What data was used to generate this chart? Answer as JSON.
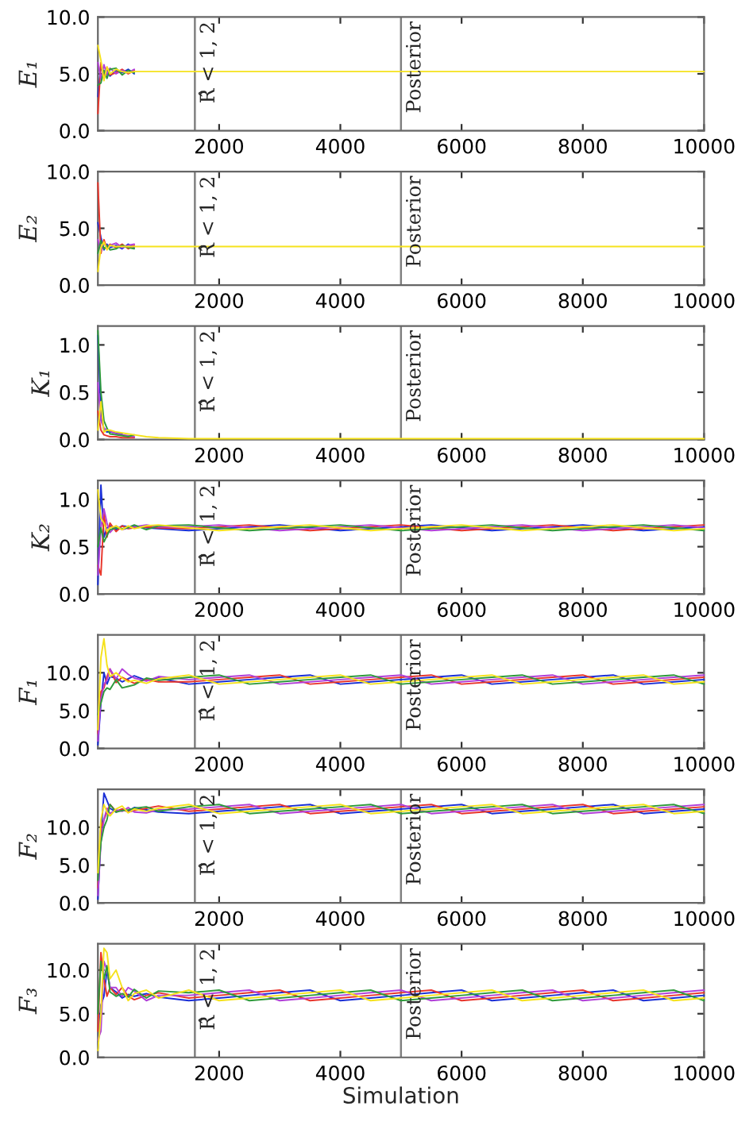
{
  "chart_data": [
    {
      "type": "line",
      "ylabel": "E₁",
      "xlim": [
        0,
        10000
      ],
      "xticks": [
        2000,
        4000,
        6000,
        8000,
        10000
      ],
      "ylim": [
        0,
        10
      ],
      "yticks": [
        {
          "value": 0,
          "label": "0.0"
        },
        {
          "value": 5,
          "label": "5.0"
        },
        {
          "value": 10,
          "label": "10.0"
        }
      ],
      "ref_lines": [
        {
          "axis": "x",
          "value": 1600,
          "label": "R̂ < 1, 2",
          "color": "#808080"
        },
        {
          "axis": "x",
          "value": 5000,
          "label": "Posterior",
          "color": "#808080"
        }
      ],
      "x": [
        0,
        50,
        100,
        150,
        200,
        300,
        400,
        500,
        600,
        800,
        1000,
        1500,
        2000,
        2500,
        3000,
        3500,
        4000,
        4500,
        5000,
        5500,
        6000,
        6500,
        7000,
        7500,
        8000,
        8500,
        9000,
        9500,
        10000
      ],
      "series": [
        {
          "color": "#1a2fd6",
          "values": [
            3.0,
            5.8,
            4.6,
            5.5,
            4.8,
            5.3,
            5.1,
            5.4,
            5.0,
            null,
            null,
            null,
            null,
            null,
            null,
            null,
            null,
            null,
            null,
            null,
            null,
            null,
            null,
            null,
            null,
            null,
            null,
            null,
            null
          ]
        },
        {
          "color": "#e8352b",
          "values": [
            1.5,
            6.0,
            4.7,
            5.6,
            4.9,
            5.1,
            5.4,
            5.0,
            5.3,
            null,
            null,
            null,
            null,
            null,
            null,
            null,
            null,
            null,
            null,
            null,
            null,
            null,
            null,
            null,
            null,
            null,
            null,
            null,
            null
          ]
        },
        {
          "color": "#b13fd8",
          "values": [
            6.0,
            4.5,
            5.8,
            4.9,
            5.5,
            5.0,
            5.3,
            5.1,
            5.4,
            null,
            null,
            null,
            null,
            null,
            null,
            null,
            null,
            null,
            null,
            null,
            null,
            null,
            null,
            null,
            null,
            null,
            null,
            null,
            null
          ]
        },
        {
          "color": "#2e9a3c",
          "values": [
            4.0,
            4.2,
            5.3,
            4.6,
            5.4,
            5.5,
            4.9,
            5.3,
            5.1,
            null,
            null,
            null,
            null,
            null,
            null,
            null,
            null,
            null,
            null,
            null,
            null,
            null,
            null,
            null,
            null,
            null,
            null,
            null,
            null
          ]
        },
        {
          "color": "#f5e21c",
          "values": [
            7.5,
            6.2,
            4.4,
            5.6,
            5.0,
            5.4,
            5.2,
            5.1,
            5.2,
            5.2,
            5.2,
            5.2,
            5.2,
            5.2,
            5.2,
            5.2,
            5.2,
            5.2,
            5.2,
            5.2,
            5.2,
            5.2,
            5.2,
            5.2,
            5.2,
            5.2,
            5.2,
            5.2,
            5.2
          ]
        }
      ]
    },
    {
      "type": "line",
      "ylabel": "E₂",
      "xlim": [
        0,
        10000
      ],
      "xticks": [
        2000,
        4000,
        6000,
        8000,
        10000
      ],
      "ylim": [
        0,
        10
      ],
      "yticks": [
        {
          "value": 0,
          "label": "0.0"
        },
        {
          "value": 5,
          "label": "5.0"
        },
        {
          "value": 10,
          "label": "10.0"
        }
      ],
      "ref_lines": [
        {
          "axis": "x",
          "value": 1600,
          "label": "R̂ < 1, 2",
          "color": "#808080"
        },
        {
          "axis": "x",
          "value": 5000,
          "label": "Posterior",
          "color": "#808080"
        }
      ],
      "x": [
        0,
        50,
        100,
        150,
        200,
        300,
        400,
        500,
        600,
        800,
        1000,
        1500,
        2000,
        2500,
        3000,
        3500,
        4000,
        4500,
        5000,
        5500,
        6000,
        6500,
        7000,
        7500,
        8000,
        8500,
        9000,
        9500,
        10000
      ],
      "series": [
        {
          "color": "#1a2fd6",
          "values": [
            5.5,
            4.2,
            3.1,
            3.6,
            3.3,
            3.5,
            3.2,
            3.6,
            3.3,
            null,
            null,
            null,
            null,
            null,
            null,
            null,
            null,
            null,
            null,
            null,
            null,
            null,
            null,
            null,
            null,
            null,
            null,
            null,
            null
          ]
        },
        {
          "color": "#e8352b",
          "values": [
            9.0,
            2.8,
            4.0,
            3.2,
            3.6,
            3.3,
            3.6,
            3.2,
            3.5,
            null,
            null,
            null,
            null,
            null,
            null,
            null,
            null,
            null,
            null,
            null,
            null,
            null,
            null,
            null,
            null,
            null,
            null,
            null,
            null
          ]
        },
        {
          "color": "#b13fd8",
          "values": [
            4.0,
            3.0,
            3.7,
            3.3,
            3.5,
            3.7,
            3.3,
            3.5,
            3.6,
            null,
            null,
            null,
            null,
            null,
            null,
            null,
            null,
            null,
            null,
            null,
            null,
            null,
            null,
            null,
            null,
            null,
            null,
            null,
            null
          ]
        },
        {
          "color": "#2e9a3c",
          "values": [
            2.8,
            3.9,
            3.2,
            3.5,
            3.1,
            3.2,
            3.5,
            3.3,
            3.2,
            null,
            null,
            null,
            null,
            null,
            null,
            null,
            null,
            null,
            null,
            null,
            null,
            null,
            null,
            null,
            null,
            null,
            null,
            null,
            null
          ]
        },
        {
          "color": "#f5e21c",
          "values": [
            1.2,
            3.3,
            3.8,
            3.1,
            3.5,
            3.4,
            3.4,
            3.4,
            3.4,
            3.4,
            3.4,
            3.4,
            3.4,
            3.4,
            3.4,
            3.4,
            3.4,
            3.4,
            3.4,
            3.4,
            3.4,
            3.4,
            3.4,
            3.4,
            3.4,
            3.4,
            3.4,
            3.4,
            3.4
          ]
        }
      ]
    },
    {
      "type": "line",
      "ylabel": "K₁",
      "xlim": [
        0,
        10000
      ],
      "xticks": [
        2000,
        4000,
        6000,
        8000,
        10000
      ],
      "ylim": [
        0,
        1.2
      ],
      "yticks": [
        {
          "value": 0,
          "label": "0.0"
        },
        {
          "value": 0.5,
          "label": "0.5"
        },
        {
          "value": 1,
          "label": "1.0"
        }
      ],
      "ref_lines": [
        {
          "axis": "x",
          "value": 1600,
          "label": "R̂ < 1, 2",
          "color": "#808080"
        },
        {
          "axis": "x",
          "value": 5000,
          "label": "Posterior",
          "color": "#808080"
        }
      ],
      "x": [
        0,
        50,
        100,
        150,
        200,
        300,
        400,
        500,
        600,
        800,
        1000,
        1500,
        2000,
        2500,
        3000,
        3500,
        4000,
        4500,
        5000,
        5500,
        6000,
        6500,
        7000,
        7500,
        8000,
        8500,
        9000,
        9500,
        10000
      ],
      "series": [
        {
          "color": "#1a2fd6",
          "values": [
            1.1,
            0.3,
            0.1,
            0.08,
            0.08,
            0.07,
            0.06,
            null,
            null,
            null,
            null,
            null,
            null,
            null,
            null,
            null,
            null,
            null,
            null,
            null,
            null,
            null,
            null,
            null,
            null,
            null,
            null,
            null,
            null
          ]
        },
        {
          "color": "#e8352b",
          "values": [
            0.3,
            0.1,
            0.05,
            0.04,
            0.03,
            0.03,
            0.02,
            0.02,
            0.02,
            null,
            null,
            null,
            null,
            null,
            null,
            null,
            null,
            null,
            null,
            null,
            null,
            null,
            null,
            null,
            null,
            null,
            null,
            null,
            null
          ]
        },
        {
          "color": "#b13fd8",
          "values": [
            0.6,
            0.2,
            0.12,
            0.1,
            0.09,
            0.06,
            0.05,
            0.04,
            0.03,
            null,
            null,
            null,
            null,
            null,
            null,
            null,
            null,
            null,
            null,
            null,
            null,
            null,
            null,
            null,
            null,
            null,
            null,
            null,
            null
          ]
        },
        {
          "color": "#2e9a3c",
          "values": [
            1.15,
            0.5,
            0.2,
            0.12,
            0.06,
            0.05,
            0.04,
            0.03,
            0.05,
            null,
            null,
            null,
            null,
            null,
            null,
            null,
            null,
            null,
            null,
            null,
            null,
            null,
            null,
            null,
            null,
            null,
            null,
            null,
            null
          ]
        },
        {
          "color": "#f5e21c",
          "values": [
            0.1,
            0.4,
            0.08,
            0.1,
            0.1,
            0.08,
            0.07,
            0.06,
            0.05,
            0.03,
            0.02,
            0.01,
            0.01,
            0.01,
            0.01,
            0.01,
            0.01,
            0.01,
            0.01,
            0.01,
            0.01,
            0.01,
            0.01,
            0.01,
            0.01,
            0.01,
            0.01,
            0.01,
            0.01
          ]
        }
      ]
    },
    {
      "type": "line",
      "ylabel": "K₂",
      "xlim": [
        0,
        10000
      ],
      "xticks": [
        2000,
        4000,
        6000,
        8000,
        10000
      ],
      "ylim": [
        0,
        1.2
      ],
      "yticks": [
        {
          "value": 0,
          "label": "0.0"
        },
        {
          "value": 0.5,
          "label": "0.5"
        },
        {
          "value": 1,
          "label": "1.0"
        }
      ],
      "ref_lines": [
        {
          "axis": "x",
          "value": 1600,
          "label": "R̂ < 1, 2",
          "color": "#808080"
        },
        {
          "axis": "x",
          "value": 5000,
          "label": "Posterior",
          "color": "#808080"
        }
      ],
      "x": [
        0,
        50,
        100,
        150,
        200,
        300,
        400,
        500,
        600,
        800,
        1000,
        1500,
        2000,
        2500,
        3000,
        3500,
        4000,
        4500,
        5000,
        5500,
        6000,
        6500,
        7000,
        7500,
        8000,
        8500,
        9000,
        9500,
        10000
      ],
      "series": [
        {
          "color": "#1a2fd6",
          "values": [
            0.1,
            1.15,
            0.6,
            0.7,
            0.72,
            0.68,
            0.72,
            0.71,
            0.72,
            0.7,
            0.69,
            0.67,
            0.69,
            0.71,
            0.73,
            0.7,
            0.67,
            0.69,
            0.71,
            0.73,
            0.7,
            0.67,
            0.69,
            0.71,
            0.73,
            0.7,
            0.67,
            0.69,
            0.71
          ]
        },
        {
          "color": "#e8352b",
          "values": [
            0.3,
            0.2,
            0.85,
            0.6,
            0.75,
            0.66,
            0.72,
            0.69,
            0.7,
            0.71,
            0.7,
            0.69,
            0.71,
            0.73,
            0.7,
            0.67,
            0.69,
            0.71,
            0.73,
            0.7,
            0.67,
            0.69,
            0.71,
            0.73,
            0.7,
            0.67,
            0.69,
            0.71,
            0.73
          ]
        },
        {
          "color": "#b13fd8",
          "values": [
            0.2,
            0.7,
            0.9,
            0.75,
            0.65,
            0.72,
            0.68,
            0.7,
            0.71,
            0.73,
            0.71,
            0.71,
            0.73,
            0.7,
            0.67,
            0.69,
            0.71,
            0.73,
            0.7,
            0.67,
            0.69,
            0.71,
            0.73,
            0.7,
            0.67,
            0.69,
            0.71,
            0.73,
            0.7
          ]
        },
        {
          "color": "#2e9a3c",
          "values": [
            0.5,
            0.7,
            0.55,
            0.62,
            0.68,
            0.7,
            0.69,
            0.7,
            0.73,
            0.68,
            0.72,
            0.73,
            0.7,
            0.67,
            0.69,
            0.71,
            0.73,
            0.7,
            0.67,
            0.69,
            0.71,
            0.73,
            0.7,
            0.67,
            0.69,
            0.71,
            0.73,
            0.7,
            0.67
          ]
        },
        {
          "color": "#f5e21c",
          "values": [
            1.1,
            0.8,
            0.75,
            0.66,
            0.7,
            0.72,
            0.68,
            0.72,
            0.69,
            0.72,
            0.73,
            0.7,
            0.67,
            0.69,
            0.71,
            0.73,
            0.7,
            0.67,
            0.69,
            0.71,
            0.73,
            0.7,
            0.67,
            0.69,
            0.71,
            0.73,
            0.7,
            0.67,
            0.69
          ]
        }
      ]
    },
    {
      "type": "line",
      "ylabel": "F₁",
      "xlim": [
        0,
        10000
      ],
      "xticks": [
        2000,
        4000,
        6000,
        8000,
        10000
      ],
      "ylim": [
        0,
        15
      ],
      "yticks": [
        {
          "value": 0,
          "label": "0.0"
        },
        {
          "value": 5,
          "label": "5.0"
        },
        {
          "value": 10,
          "label": "10.0"
        }
      ],
      "ref_lines": [
        {
          "axis": "x",
          "value": 1600,
          "label": "R̂ < 1, 2",
          "color": "#808080"
        },
        {
          "axis": "x",
          "value": 5000,
          "label": "Posterior",
          "color": "#808080"
        }
      ],
      "x": [
        0,
        50,
        100,
        150,
        200,
        300,
        400,
        500,
        600,
        800,
        1000,
        1500,
        2000,
        2500,
        3000,
        3500,
        4000,
        4500,
        5000,
        5500,
        6000,
        6500,
        7000,
        7500,
        8000,
        8500,
        9000,
        9500,
        10000
      ],
      "series": [
        {
          "color": "#1a2fd6",
          "values": [
            0.5,
            6.0,
            10.0,
            8.5,
            9.5,
            9.3,
            8.8,
            9.2,
            9.6,
            9.0,
            9.3,
            8.5,
            8.8,
            9.1,
            9.4,
            9.7,
            8.5,
            8.8,
            9.1,
            9.4,
            9.7,
            8.5,
            8.8,
            9.1,
            9.4,
            9.7,
            8.5,
            8.8,
            9.1
          ]
        },
        {
          "color": "#e8352b",
          "values": [
            2.0,
            7.5,
            8.0,
            9.5,
            10.5,
            8.7,
            9.4,
            9.0,
            8.6,
            9.1,
            8.8,
            8.8,
            9.1,
            9.4,
            9.7,
            8.5,
            8.8,
            9.1,
            9.4,
            9.7,
            8.5,
            8.8,
            9.1,
            9.4,
            9.7,
            8.5,
            8.8,
            9.1,
            9.4
          ]
        },
        {
          "color": "#b13fd8",
          "values": [
            1.0,
            6.5,
            8.5,
            9.0,
            10.5,
            9.2,
            10.5,
            9.8,
            9.3,
            8.9,
            9.5,
            9.1,
            9.4,
            9.7,
            8.5,
            8.8,
            9.1,
            9.4,
            9.7,
            8.5,
            8.8,
            9.1,
            9.4,
            9.7,
            8.5,
            8.8,
            9.1,
            9.4,
            9.7
          ]
        },
        {
          "color": "#2e9a3c",
          "values": [
            4.5,
            6.0,
            7.5,
            8.0,
            7.8,
            9.1,
            8.0,
            8.2,
            8.4,
            9.3,
            9.0,
            9.4,
            9.7,
            8.5,
            8.8,
            9.1,
            9.4,
            9.7,
            8.5,
            8.8,
            9.1,
            9.4,
            9.7,
            8.5,
            8.8,
            9.1,
            9.4,
            9.7,
            8.5
          ]
        },
        {
          "color": "#f5e21c",
          "values": [
            2.5,
            12.0,
            14.5,
            11.0,
            9.5,
            10.0,
            9.3,
            8.8,
            9.0,
            8.6,
            9.2,
            9.7,
            8.5,
            8.8,
            9.1,
            9.4,
            9.7,
            8.5,
            8.8,
            9.1,
            9.4,
            9.7,
            8.5,
            8.8,
            9.1,
            9.4,
            9.7,
            8.5,
            8.8
          ]
        }
      ]
    },
    {
      "type": "line",
      "ylabel": "F₂",
      "xlim": [
        0,
        10000
      ],
      "xticks": [
        2000,
        4000,
        6000,
        8000,
        10000
      ],
      "ylim": [
        0,
        15
      ],
      "yticks": [
        {
          "value": 0,
          "label": "0.0"
        },
        {
          "value": 5,
          "label": "5.0"
        },
        {
          "value": 10,
          "label": "10.0"
        }
      ],
      "ref_lines": [
        {
          "axis": "x",
          "value": 1600,
          "label": "R̂ < 1, 2",
          "color": "#808080"
        },
        {
          "axis": "x",
          "value": 5000,
          "label": "Posterior",
          "color": "#808080"
        }
      ],
      "x": [
        0,
        50,
        100,
        150,
        200,
        300,
        400,
        500,
        600,
        800,
        1000,
        1500,
        2000,
        2500,
        3000,
        3500,
        4000,
        4500,
        5000,
        5500,
        6000,
        6500,
        7000,
        7500,
        8000,
        8500,
        9000,
        9500,
        10000
      ],
      "series": [
        {
          "color": "#1a2fd6",
          "values": [
            0.5,
            9.0,
            14.5,
            13.5,
            12.5,
            12.0,
            12.4,
            12.1,
            12.6,
            12.3,
            12.0,
            11.8,
            12.1,
            12.4,
            12.7,
            13.0,
            11.8,
            12.1,
            12.4,
            12.7,
            13.0,
            11.8,
            12.1,
            12.4,
            12.7,
            13.0,
            11.8,
            12.1,
            12.4
          ]
        },
        {
          "color": "#e8352b",
          "values": [
            2.0,
            10.0,
            11.0,
            12.0,
            13.0,
            12.1,
            12.4,
            12.0,
            12.2,
            12.5,
            12.8,
            12.1,
            12.4,
            12.7,
            13.0,
            11.8,
            12.1,
            12.4,
            12.7,
            13.0,
            11.8,
            12.1,
            12.4,
            12.7,
            13.0,
            11.8,
            12.1,
            12.4,
            12.7
          ]
        },
        {
          "color": "#b13fd8",
          "values": [
            1.0,
            8.0,
            11.0,
            12.5,
            11.8,
            12.3,
            12.1,
            12.6,
            12.0,
            11.9,
            12.3,
            12.4,
            12.7,
            13.0,
            11.8,
            12.1,
            12.4,
            12.7,
            13.0,
            11.8,
            12.1,
            12.4,
            12.7,
            13.0,
            11.8,
            12.1,
            12.4,
            12.7,
            13.0
          ]
        },
        {
          "color": "#2e9a3c",
          "values": [
            3.0,
            8.0,
            10.0,
            11.0,
            13.0,
            12.0,
            12.2,
            12.3,
            12.5,
            12.7,
            12.1,
            12.7,
            13.0,
            11.8,
            12.1,
            12.4,
            12.7,
            13.0,
            11.8,
            12.1,
            12.4,
            12.7,
            13.0,
            11.8,
            12.1,
            12.4,
            12.7,
            13.0,
            11.8
          ]
        },
        {
          "color": "#f5e21c",
          "values": [
            4.0,
            11.0,
            13.0,
            12.0,
            11.5,
            12.4,
            12.8,
            11.9,
            12.4,
            12.1,
            12.5,
            13.0,
            11.8,
            12.1,
            12.4,
            12.7,
            13.0,
            11.8,
            12.1,
            12.4,
            12.7,
            13.0,
            11.8,
            12.1,
            12.4,
            12.7,
            13.0,
            11.8,
            12.1
          ]
        }
      ]
    },
    {
      "type": "line",
      "ylabel": "F₃",
      "xlabel": "Simulation",
      "xlim": [
        0,
        10000
      ],
      "xticks": [
        2000,
        4000,
        6000,
        8000,
        10000
      ],
      "ylim": [
        0,
        13
      ],
      "yticks": [
        {
          "value": 0,
          "label": "0.0"
        },
        {
          "value": 5,
          "label": "5.0"
        },
        {
          "value": 10,
          "label": "10.0"
        }
      ],
      "ref_lines": [
        {
          "axis": "x",
          "value": 1600,
          "label": "R̂ < 1, 2",
          "color": "#808080"
        },
        {
          "axis": "x",
          "value": 5000,
          "label": "Posterior",
          "color": "#808080"
        }
      ],
      "x": [
        0,
        50,
        100,
        150,
        200,
        300,
        400,
        500,
        600,
        800,
        1000,
        1500,
        2000,
        2500,
        3000,
        3500,
        4000,
        4500,
        5000,
        5500,
        6000,
        6500,
        7000,
        7500,
        8000,
        8500,
        9000,
        9500,
        10000
      ],
      "series": [
        {
          "color": "#1a2fd6",
          "values": [
            1.0,
            6.0,
            7.0,
            10.0,
            8.0,
            7.5,
            6.8,
            7.2,
            7.0,
            7.3,
            6.9,
            6.5,
            6.8,
            7.1,
            7.4,
            7.7,
            6.5,
            6.8,
            7.1,
            7.4,
            7.7,
            6.5,
            6.8,
            7.1,
            7.4,
            7.7,
            6.5,
            6.8,
            7.1
          ]
        },
        {
          "color": "#e8352b",
          "values": [
            3.0,
            12.0,
            9.0,
            7.0,
            8.0,
            7.2,
            8.0,
            7.0,
            6.6,
            7.1,
            7.4,
            6.8,
            7.1,
            7.4,
            7.7,
            6.5,
            6.8,
            7.1,
            7.4,
            7.7,
            6.5,
            6.8,
            7.1,
            7.4,
            7.7,
            6.5,
            6.8,
            7.1,
            7.4
          ]
        },
        {
          "color": "#b13fd8",
          "values": [
            2.0,
            3.0,
            11.0,
            10.0,
            8.0,
            8.0,
            7.0,
            8.0,
            7.6,
            6.5,
            7.1,
            7.1,
            7.4,
            7.7,
            6.5,
            6.8,
            7.1,
            7.4,
            7.7,
            6.5,
            6.8,
            7.1,
            7.4,
            7.7,
            6.5,
            6.8,
            7.1,
            7.4,
            7.7
          ]
        },
        {
          "color": "#2e9a3c",
          "values": [
            5.0,
            11.0,
            9.0,
            10.5,
            7.5,
            7.0,
            7.3,
            6.9,
            7.8,
            6.8,
            7.6,
            7.4,
            7.7,
            6.5,
            6.8,
            7.1,
            7.4,
            7.7,
            6.5,
            6.8,
            7.1,
            7.4,
            7.7,
            6.5,
            6.8,
            7.1,
            7.4,
            7.7,
            6.5
          ]
        },
        {
          "color": "#f5e21c",
          "values": [
            0.8,
            5.0,
            12.5,
            12.0,
            9.0,
            10.0,
            8.0,
            6.5,
            7.3,
            7.7,
            6.8,
            7.7,
            6.5,
            6.8,
            7.1,
            7.4,
            7.7,
            6.5,
            6.8,
            7.1,
            7.4,
            7.7,
            6.5,
            6.8,
            7.1,
            7.4,
            7.7,
            6.5,
            6.8
          ]
        }
      ]
    }
  ]
}
